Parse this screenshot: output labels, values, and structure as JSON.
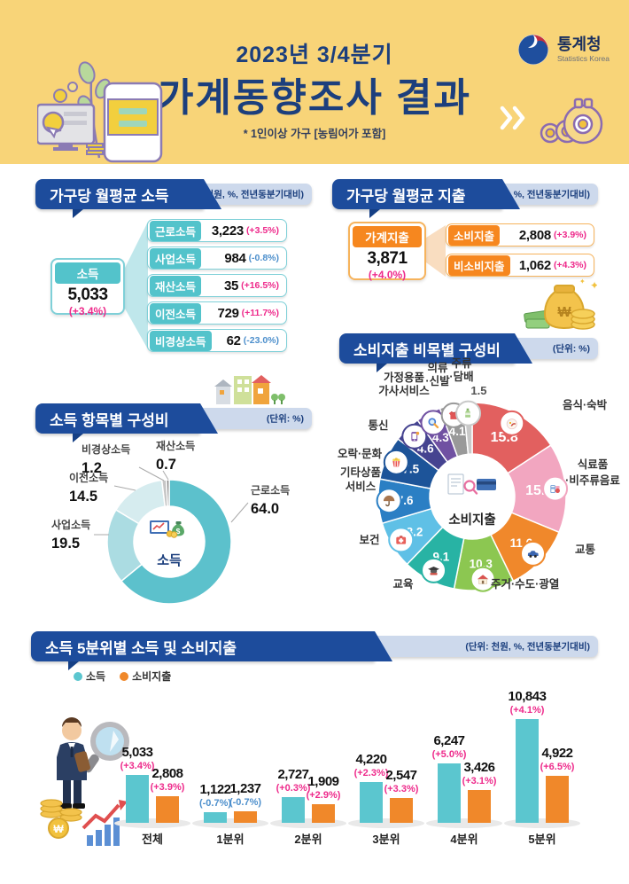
{
  "header": {
    "subtitle": "2023년 3/4분기",
    "title": "가계동향조사 결과",
    "note": "* 1인이상 가구 [농림어가 포함]",
    "logo_name": "통계청",
    "logo_sub": "Statistics Korea"
  },
  "income": {
    "title": "가구당 월평균 소득",
    "unit": "(단위: 천원, %, 전년동분기대비)",
    "total": {
      "label": "소득",
      "value": "5,033",
      "change": "(+3.4%)"
    },
    "items": [
      {
        "label": "근로소득",
        "value": "3,223",
        "change": "(+3.5%)"
      },
      {
        "label": "사업소득",
        "value": "984",
        "change": "(-0.8%)"
      },
      {
        "label": "재산소득",
        "value": "35",
        "change": "(+16.5%)"
      },
      {
        "label": "이전소득",
        "value": "729",
        "change": "(+11.7%)"
      },
      {
        "label": "비경상소득",
        "value": "62",
        "change": "(-23.0%)"
      }
    ]
  },
  "expenditure": {
    "title": "가구당 월평균 지출",
    "unit": "(단위: 천원, %, 전년동분기대비)",
    "total": {
      "label": "가계지출",
      "value": "3,871",
      "change": "(+4.0%)"
    },
    "items": [
      {
        "label": "소비지출",
        "value": "2,808",
        "change": "(+3.9%)"
      },
      {
        "label": "비소비지출",
        "value": "1,062",
        "change": "(+4.3%)"
      }
    ]
  },
  "income_composition": {
    "title": "소득 항목별 구성비",
    "unit": "(단위: %)",
    "center_label": "소득"
  },
  "expenditure_composition": {
    "title": "소비지출 비목별 구성비",
    "unit": "(단위: %)",
    "center_label": "소비지출"
  },
  "quintile": {
    "title": "소득 5분위별 소득 및 소비지출",
    "unit": "(단위: 천원, %, 전년동분기대비)"
  },
  "chart_data": [
    {
      "id": "income_composition",
      "type": "donut",
      "title": "소득 항목별 구성비",
      "unit": "%",
      "center_label": "소득",
      "labels": [
        "근로소득",
        "사업소득",
        "이전소득",
        "비경상소득",
        "재산소득"
      ],
      "values": [
        64.0,
        19.5,
        14.5,
        1.2,
        0.7
      ],
      "colors": [
        "#5cc1cc",
        "#abdce2",
        "#d6ecef",
        "#c6c6c6",
        "#7e7e7e"
      ]
    },
    {
      "id": "expenditure_composition",
      "type": "donut",
      "title": "소비지출 비목별 구성비",
      "unit": "%",
      "center_label": "소비지출",
      "labels": [
        "음식·숙박",
        "식료품·비주류음료",
        "교통",
        "주거·수도·광열",
        "교육",
        "보건",
        "기타상품·서비스",
        "오락·문화",
        "통신",
        "가정용품·가사서비스",
        "의류·신발",
        "주류·담배"
      ],
      "display_lines": [
        [
          "음식·숙박"
        ],
        [
          "식료품",
          "·비주류음료"
        ],
        [
          "교통"
        ],
        [
          "주거·수도·광열"
        ],
        [
          "교육"
        ],
        [
          "보건"
        ],
        [
          "기타상품",
          "서비스"
        ],
        [
          "오락·문화"
        ],
        [
          "통신"
        ],
        [
          "가정용품",
          "가사서비스"
        ],
        [
          "의류",
          "·신발"
        ],
        [
          "주류",
          "·담배"
        ]
      ],
      "values": [
        15.8,
        15.4,
        11.6,
        10.3,
        9.1,
        8.2,
        7.6,
        7.5,
        4.6,
        4.3,
        4.1,
        1.5
      ],
      "colors": [
        "#e2605f",
        "#f2a6c0",
        "#f0882b",
        "#8cc751",
        "#28b3a4",
        "#5fc0e6",
        "#2b7fc4",
        "#1d5499",
        "#454390",
        "#7051a2",
        "#999999",
        "#c9c9c9"
      ],
      "icons": [
        "food",
        "grocery",
        "car",
        "house",
        "education",
        "health",
        "misc",
        "leisure",
        "phone",
        "household",
        "clothes",
        "drink"
      ]
    },
    {
      "id": "quintile",
      "type": "bar",
      "title": "소득 5분위별 소득 및 소비지출",
      "unit": "천원, %, 전년동분기대비",
      "categories": [
        "전체",
        "1분위",
        "2분위",
        "3분위",
        "4분위",
        "5분위"
      ],
      "series": [
        {
          "name": "소득",
          "color": "#5bc6cf",
          "values": [
            5033,
            1122,
            2727,
            4220,
            6247,
            10843
          ],
          "value_labels": [
            "5,033",
            "1,122",
            "2,727",
            "4,220",
            "6,247",
            "10,843"
          ],
          "changes": [
            "(+3.4%)",
            "(-0.7%)",
            "(+0.3%)",
            "(+2.3%)",
            "(+5.0%)",
            "(+4.1%)"
          ]
        },
        {
          "name": "소비지출",
          "color": "#f0882a",
          "values": [
            2808,
            1237,
            1909,
            2547,
            3426,
            4922
          ],
          "value_labels": [
            "2,808",
            "1,237",
            "1,909",
            "2,547",
            "3,426",
            "4,922"
          ],
          "changes": [
            "(+3.9%)",
            "(-0.7%)",
            "(+2.9%)",
            "(+3.3%)",
            "(+3.1%)",
            "(+6.5%)"
          ]
        }
      ]
    }
  ]
}
